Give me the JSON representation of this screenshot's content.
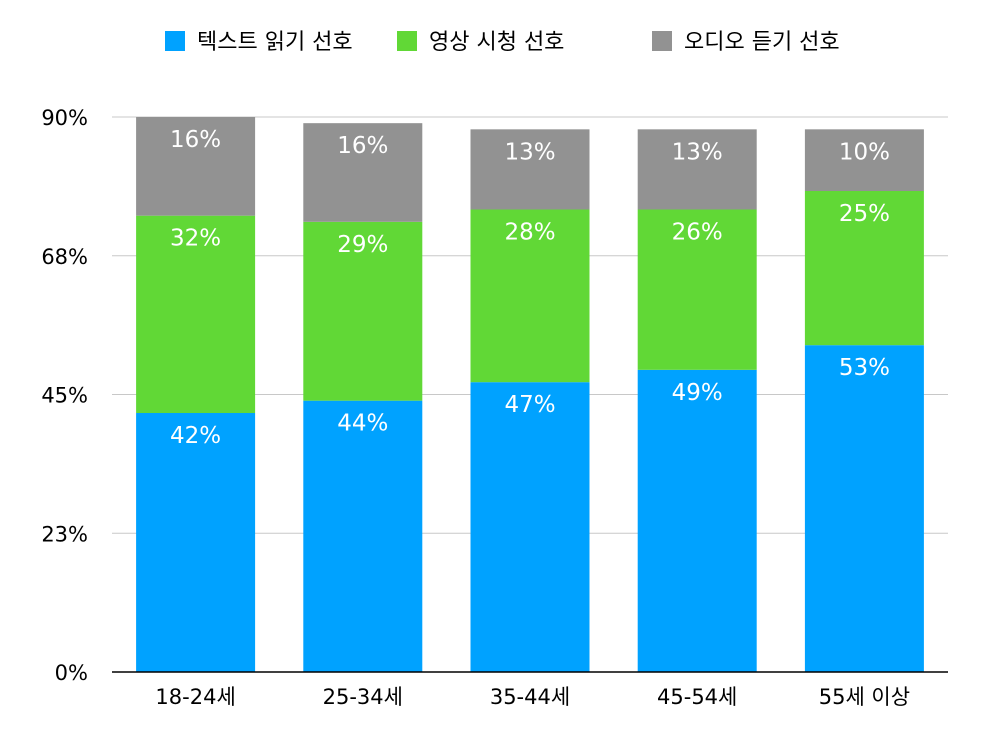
{
  "chart_data": {
    "type": "bar",
    "stacked": true,
    "categories": [
      "18-24세",
      "25-34세",
      "35-44세",
      "45-54세",
      "55세 이상"
    ],
    "series": [
      {
        "name": "텍스트 읽기 선호",
        "color": "#00A2FF",
        "values": [
          42,
          44,
          47,
          49,
          53
        ],
        "labels": [
          "42%",
          "44%",
          "47%",
          "49%",
          "53%"
        ]
      },
      {
        "name": "영상 시청 선호",
        "color": "#61D836",
        "values": [
          32,
          29,
          28,
          26,
          25
        ],
        "labels": [
          "32%",
          "29%",
          "28%",
          "26%",
          "25%"
        ]
      },
      {
        "name": "오디오 듣기 선호",
        "color": "#929292",
        "values": [
          16,
          16,
          13,
          13,
          10
        ],
        "labels": [
          "16%",
          "16%",
          "13%",
          "13%",
          "10%"
        ]
      }
    ],
    "ylim": [
      0,
      90
    ],
    "yticks": [
      0,
      22.5,
      45,
      67.5,
      90
    ],
    "ytick_labels": [
      "0%",
      "23%",
      "45%",
      "68%",
      "90%"
    ],
    "legend_position": "top",
    "grid": true
  }
}
